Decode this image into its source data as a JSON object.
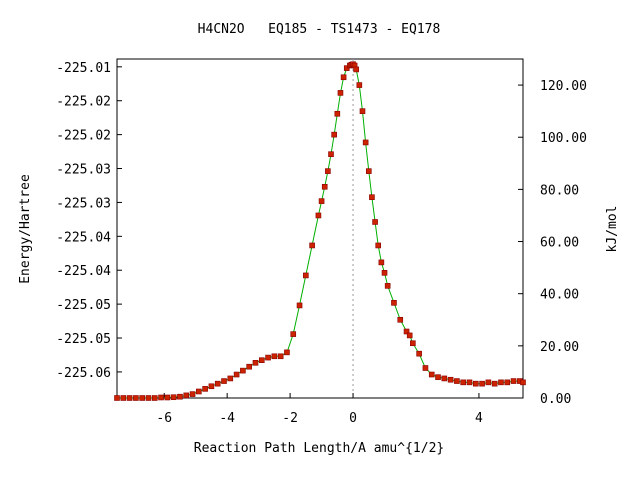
{
  "chart_data": {
    "type": "scatter",
    "title": "H4CN2O   EQ185 - TS1473 - EQ178",
    "xlabel": "Reaction Path Length/A amu^{1/2}",
    "ylabel_left": "Energy/Hartree",
    "ylabel_right": "kJ/mol",
    "xlim": [
      -7.5,
      5.4
    ],
    "ylim_kjmol": [
      0,
      130
    ],
    "ylim_hartree": [
      -225.0642,
      -225.0147
    ],
    "x_ticks": [
      -6,
      -4,
      -2,
      0,
      4
    ],
    "x_tick_labels": [
      "-6",
      "-4",
      "-2",
      "0",
      "4"
    ],
    "y_left_tick_values_kjmol": [
      10,
      23,
      36,
      49,
      62,
      75,
      88,
      101,
      114,
      127
    ],
    "y_left_tick_labels": [
      "-225.06",
      "-225.05",
      "-225.05",
      "-225.04",
      "-225.04",
      "-225.03",
      "-225.03",
      "-225.02",
      "-225.02",
      "-225.01"
    ],
    "y_right_tick_values": [
      0,
      20,
      40,
      60,
      80,
      100,
      120
    ],
    "y_right_tick_labels": [
      "0.00",
      "20.00",
      "40.00",
      "60.00",
      "80.00",
      "100.00",
      "120.00"
    ],
    "ts_x": 0.0,
    "colors": {
      "line": "#00b000",
      "marker": "#cc2200",
      "marker_edge": "#880000",
      "ts_line": "#999999"
    },
    "series": [
      {
        "x": [
          -7.5,
          -7.3,
          -7.1,
          -6.9,
          -6.7,
          -6.5,
          -6.3,
          -6.1,
          -5.9,
          -5.7,
          -5.5,
          -5.3,
          -5.1,
          -4.9,
          -4.7,
          -4.5,
          -4.3,
          -4.1,
          -3.9,
          -3.7,
          -3.5,
          -3.3,
          -3.1,
          -2.9,
          -2.7,
          -2.5,
          -2.3,
          -2.1,
          -1.9,
          -1.7,
          -1.5,
          -1.3,
          -1.1,
          -1.0,
          -0.9,
          -0.8,
          -0.7,
          -0.6,
          -0.5,
          -0.4,
          -0.3,
          -0.2,
          -0.1,
          -0.05,
          0.0,
          0.05,
          0.1,
          0.2,
          0.3,
          0.4,
          0.5,
          0.6,
          0.7,
          0.8,
          0.9,
          1.0,
          1.1,
          1.3,
          1.5,
          1.7,
          1.8,
          1.9,
          2.1,
          2.3,
          2.5,
          2.7,
          2.9,
          3.1,
          3.3,
          3.5,
          3.7,
          3.9,
          4.1,
          4.3,
          4.5,
          4.7,
          4.9,
          5.1,
          5.3,
          5.4
        ],
        "y": [
          0.0,
          0.0,
          0.0,
          0.0,
          0.0,
          0.0,
          0.0,
          0.2,
          0.2,
          0.3,
          0.5,
          1.0,
          1.5,
          2.5,
          3.5,
          4.5,
          5.5,
          6.5,
          7.5,
          9.0,
          10.5,
          12.0,
          13.5,
          14.5,
          15.5,
          16.0,
          16.0,
          17.5,
          24.5,
          35.5,
          47.0,
          58.5,
          70.0,
          75.5,
          81.0,
          87.0,
          93.5,
          101.0,
          109.0,
          117.0,
          123.0,
          126.5,
          127.5,
          127.8,
          128.0,
          127.5,
          126.0,
          120.0,
          110.0,
          98.0,
          87.0,
          77.0,
          67.5,
          58.5,
          52.0,
          48.0,
          43.0,
          36.5,
          30.0,
          25.5,
          24.0,
          21.0,
          17.0,
          11.5,
          9.0,
          8.0,
          7.5,
          7.0,
          6.5,
          6.0,
          6.0,
          5.5,
          5.5,
          6.0,
          5.5,
          6.0,
          6.0,
          6.5,
          6.5,
          6.0
        ]
      }
    ],
    "grid": false,
    "legend": "none"
  }
}
